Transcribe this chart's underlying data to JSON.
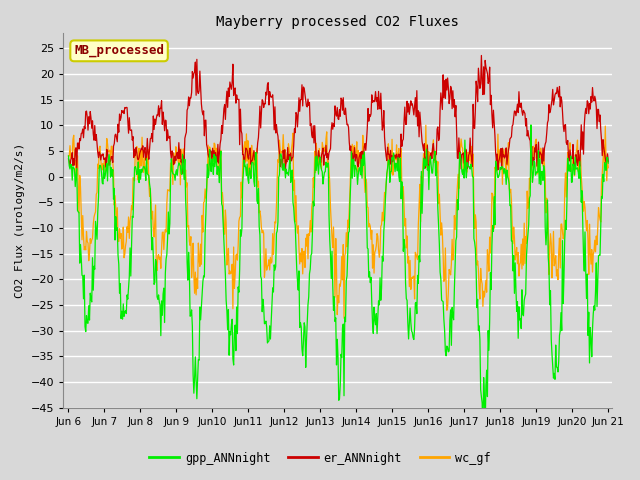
{
  "title": "Mayberry processed CO2 Fluxes",
  "ylabel": "CO2 Flux (urology/m2/s)",
  "ylim": [
    -45,
    28
  ],
  "yticks": [
    -45,
    -40,
    -35,
    -30,
    -25,
    -20,
    -15,
    -10,
    -5,
    0,
    5,
    10,
    15,
    20,
    25
  ],
  "background_color": "#d8d8d8",
  "plot_bg_color": "#d8d8d8",
  "grid_color": "#ffffff",
  "legend_label": "MB_processed",
  "legend_text_color": "#8b0000",
  "legend_box_facecolor": "#ffffc8",
  "legend_box_edgecolor": "#cccc00",
  "line_colors": {
    "gpp": "#00ee00",
    "er": "#cc0000",
    "wc": "#ffa500"
  },
  "series_labels": [
    "gpp_ANNnight",
    "er_ANNnight",
    "wc_gf"
  ],
  "n_points": 720,
  "x_start": 6.0,
  "x_end": 21.0,
  "xtick_positions": [
    6,
    7,
    8,
    9,
    10,
    11,
    12,
    13,
    14,
    15,
    16,
    17,
    18,
    19,
    20,
    21
  ],
  "xtick_labels": [
    "Jun 6",
    "Jun 7",
    "Jun 8",
    "Jun 9",
    "Jun10",
    "Jun11",
    "Jun12",
    "Jun13",
    "Jun14",
    "Jun15",
    "Jun16",
    "Jun17",
    "Jun18",
    "Jun19",
    "Jun20",
    "Jun 21"
  ]
}
